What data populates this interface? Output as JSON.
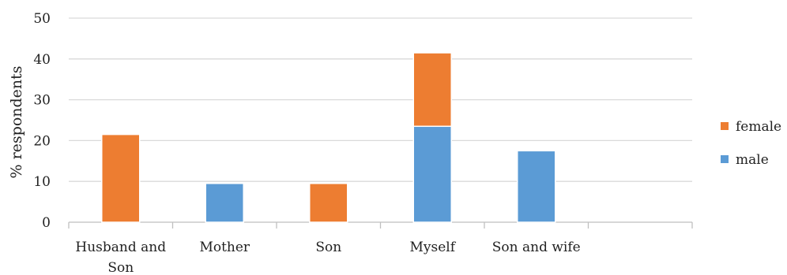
{
  "chart_data": {
    "type": "bar",
    "stacked": true,
    "categories": [
      "Husband and Son",
      "Mother",
      "Son",
      "Myself",
      "Son and wife",
      ""
    ],
    "series": [
      {
        "name": "male",
        "color": "#5b9bd5",
        "values": [
          0,
          9.5,
          0,
          23.5,
          17.5,
          0
        ]
      },
      {
        "name": "female",
        "color": "#ed7d31",
        "values": [
          21.5,
          0,
          9.5,
          18,
          0,
          0
        ]
      }
    ],
    "ylabel": "% respondents",
    "ylim": [
      0,
      50
    ],
    "yticks": [
      0,
      10,
      20,
      30,
      40,
      50
    ],
    "grid": true,
    "legend": {
      "position": "right",
      "order": [
        "female",
        "male"
      ]
    }
  }
}
